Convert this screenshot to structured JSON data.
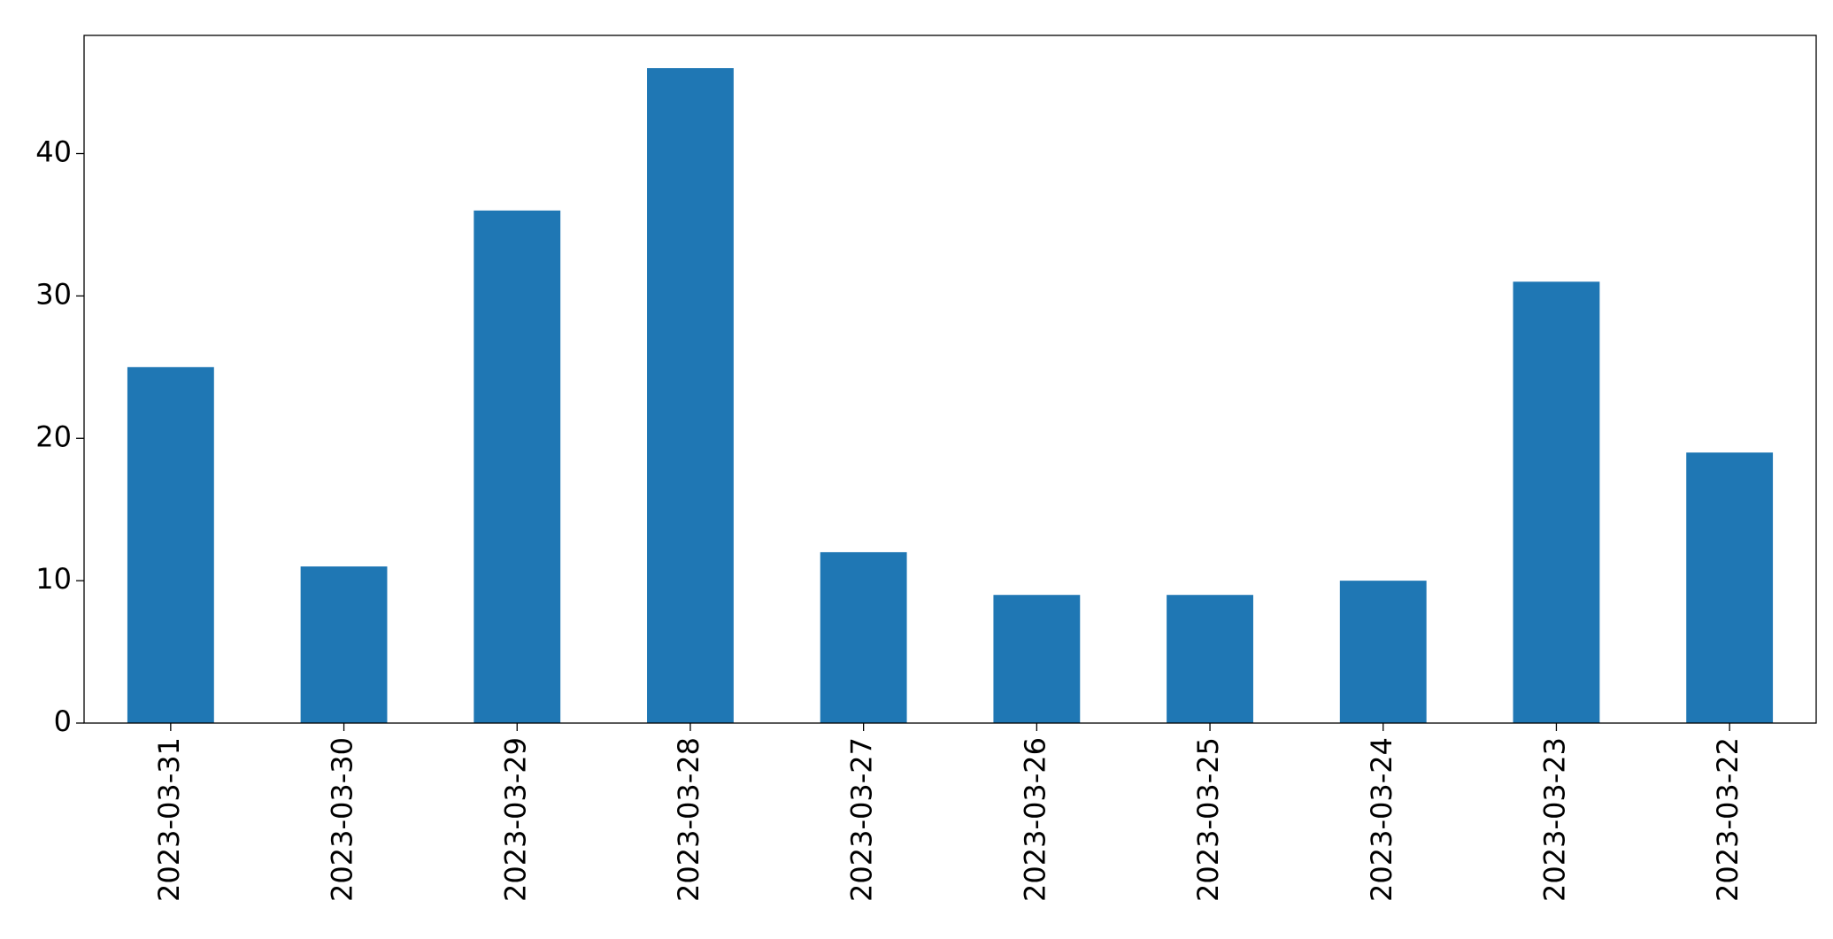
{
  "chart_data": {
    "type": "bar",
    "categories": [
      "2023-03-31",
      "2023-03-30",
      "2023-03-29",
      "2023-03-28",
      "2023-03-27",
      "2023-03-26",
      "2023-03-25",
      "2023-03-24",
      "2023-03-23",
      "2023-03-22"
    ],
    "values": [
      25,
      11,
      36,
      46,
      12,
      9,
      9,
      10,
      31,
      19
    ],
    "color": "#1f77b4",
    "ylim": [
      0,
      48.3
    ],
    "yticks": [
      0,
      10,
      20,
      30,
      40
    ],
    "grid": false
  }
}
